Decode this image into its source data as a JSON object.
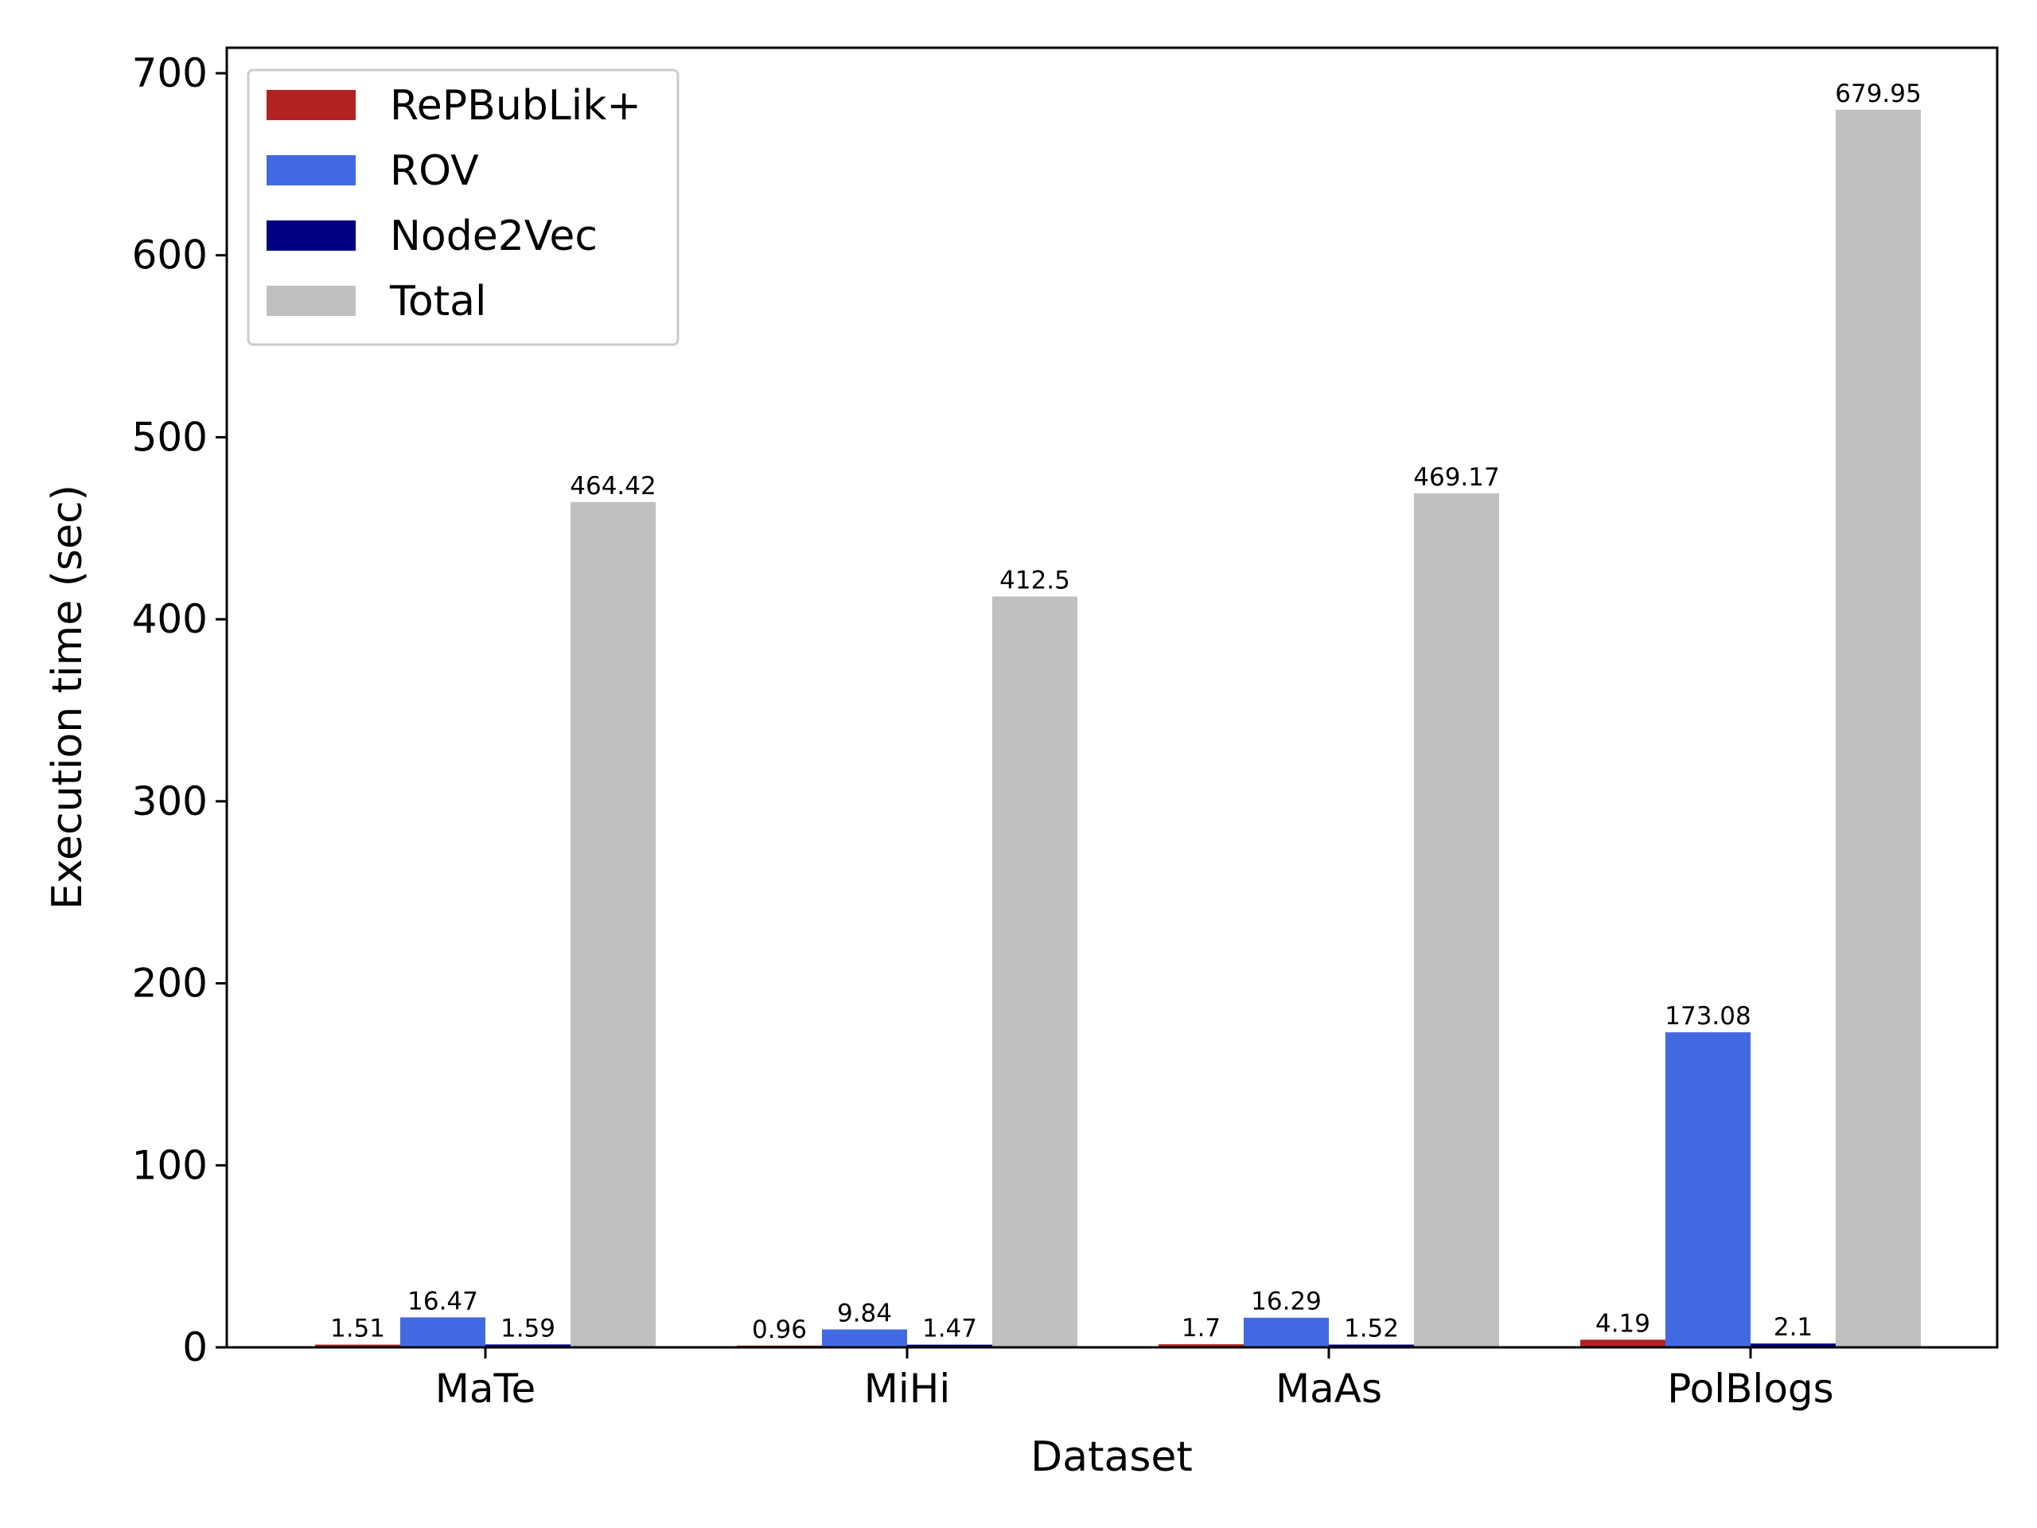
{
  "chart_data": {
    "type": "bar",
    "title": "",
    "xlabel": "Dataset",
    "ylabel": "Execution time (sec)",
    "categories": [
      "MaTe",
      "MiHi",
      "MaAs",
      "PolBlogs"
    ],
    "ylim": [
      0,
      714
    ],
    "yticks": [
      0,
      100,
      200,
      300,
      400,
      500,
      600,
      700
    ],
    "ytick_labels": [
      "0",
      "100",
      "200",
      "300",
      "400",
      "500",
      "600",
      "700"
    ],
    "grid": false,
    "legend_position": "top-left",
    "series": [
      {
        "name": "RePBubLik+",
        "color": "#b22222",
        "values": [
          1.51,
          0.96,
          1.7,
          4.19
        ],
        "labels": [
          "1.51",
          "0.96",
          "1.7",
          "4.19"
        ]
      },
      {
        "name": "ROV",
        "color": "#4169e1",
        "values": [
          16.47,
          9.84,
          16.29,
          173.08
        ],
        "labels": [
          "16.47",
          "9.84",
          "16.29",
          "173.08"
        ]
      },
      {
        "name": "Node2Vec",
        "color": "#000080",
        "values": [
          1.59,
          1.47,
          1.52,
          2.1
        ],
        "labels": [
          "1.59",
          "1.47",
          "1.52",
          "2.1"
        ]
      },
      {
        "name": "Total",
        "color": "#c0c0c0",
        "values": [
          464.42,
          412.5,
          469.17,
          679.95
        ],
        "labels": [
          "464.42",
          "412.5",
          "469.17",
          "679.95"
        ]
      }
    ]
  }
}
